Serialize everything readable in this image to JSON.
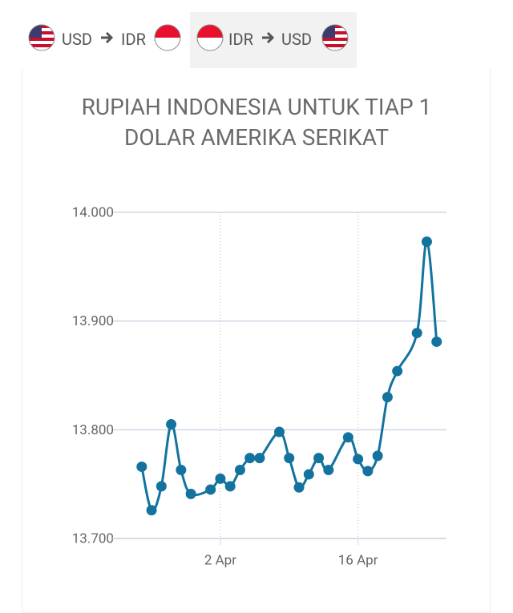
{
  "tabs": [
    {
      "from": "USD",
      "to": "IDR"
    },
    {
      "from": "IDR",
      "to": "USD"
    }
  ],
  "chart_data": {
    "type": "line",
    "title": "RUPIAH INDONESIA UNTUK TIAP 1 DOLAR AMERIKA SERIKAT",
    "x": [
      "25 Mar",
      "26 Mar",
      "27 Mar",
      "28 Mar",
      "29 Mar",
      "30 Mar",
      "1 Apr",
      "2 Apr",
      "3 Apr",
      "4 Apr",
      "5 Apr",
      "6 Apr",
      "8 Apr",
      "9 Apr",
      "10 Apr",
      "11 Apr",
      "12 Apr",
      "13 Apr",
      "15 Apr",
      "16 Apr",
      "17 Apr",
      "18 Apr",
      "19 Apr",
      "20 Apr",
      "22 Apr",
      "23 Apr",
      "24 Apr"
    ],
    "series": [
      {
        "name": "IDR",
        "color": "#13739e",
        "values": [
          13766,
          13726,
          13748,
          13805,
          13763,
          13741,
          13745,
          13755,
          13748,
          13763,
          13774,
          13774,
          13798,
          13774,
          13747,
          13759,
          13774,
          13763,
          13793,
          13773,
          13762,
          13776,
          13830,
          13854,
          13889,
          13973,
          13881
        ]
      }
    ],
    "xlim": [
      "22 Mar",
      "25 Apr"
    ],
    "xticks": [
      "2 Apr",
      "16 Apr"
    ],
    "ylim": [
      13700,
      14000
    ],
    "yticks": [
      {
        "value": 13700,
        "label": "13.700"
      },
      {
        "value": 13800,
        "label": "13.800"
      },
      {
        "value": 13900,
        "label": "13.900"
      },
      {
        "value": 14000,
        "label": "14.000"
      }
    ],
    "grid": true
  }
}
